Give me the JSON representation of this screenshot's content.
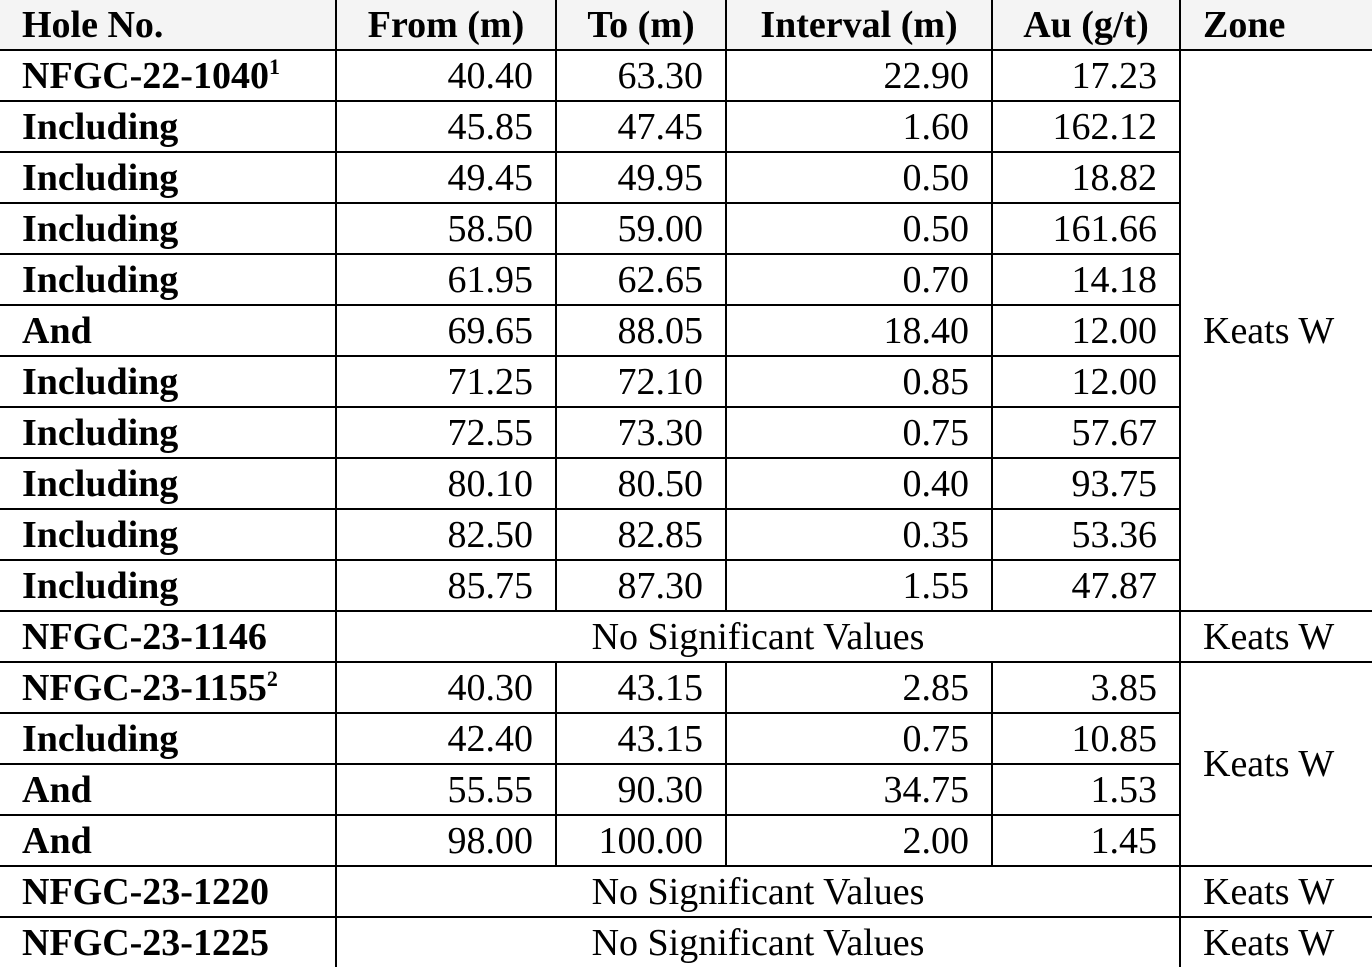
{
  "table": {
    "header": [
      "Hole No.",
      "From (m)",
      "To (m)",
      "Interval (m)",
      "Au (g/t)",
      "Zone"
    ],
    "groups": [
      {
        "zone": "Keats W",
        "rows": [
          {
            "hole": "NFGC-22-1040",
            "note": "1",
            "from": "40.40",
            "to": "63.30",
            "interval": "22.90",
            "au": "17.23"
          },
          {
            "hole": "Including",
            "from": "45.85",
            "to": "47.45",
            "interval": "1.60",
            "au": "162.12"
          },
          {
            "hole": "Including",
            "from": "49.45",
            "to": "49.95",
            "interval": "0.50",
            "au": "18.82"
          },
          {
            "hole": "Including",
            "from": "58.50",
            "to": "59.00",
            "interval": "0.50",
            "au": "161.66"
          },
          {
            "hole": "Including",
            "from": "61.95",
            "to": "62.65",
            "interval": "0.70",
            "au": "14.18"
          },
          {
            "hole": "And",
            "from": "69.65",
            "to": "88.05",
            "interval": "18.40",
            "au": "12.00"
          },
          {
            "hole": "Including",
            "from": "71.25",
            "to": "72.10",
            "interval": "0.85",
            "au": "12.00"
          },
          {
            "hole": "Including",
            "from": "72.55",
            "to": "73.30",
            "interval": "0.75",
            "au": "57.67"
          },
          {
            "hole": "Including",
            "from": "80.10",
            "to": "80.50",
            "interval": "0.40",
            "au": "93.75"
          },
          {
            "hole": "Including",
            "from": "82.50",
            "to": "82.85",
            "interval": "0.35",
            "au": "53.36"
          },
          {
            "hole": "Including",
            "from": "85.75",
            "to": "87.30",
            "interval": "1.55",
            "au": "47.87"
          }
        ]
      },
      {
        "zone": "Keats W",
        "rows": [
          {
            "hole": "NFGC-23-1146",
            "result": "No Significant Values"
          }
        ]
      },
      {
        "zone": "Keats W",
        "rows": [
          {
            "hole": "NFGC-23-1155",
            "note": "2",
            "from": "40.30",
            "to": "43.15",
            "interval": "2.85",
            "au": "3.85"
          },
          {
            "hole": "Including",
            "from": "42.40",
            "to": "43.15",
            "interval": "0.75",
            "au": "10.85"
          },
          {
            "hole": "And",
            "from": "55.55",
            "to": "90.30",
            "interval": "34.75",
            "au": "1.53"
          },
          {
            "hole": "And",
            "from": "98.00",
            "to": "100.00",
            "interval": "2.00",
            "au": "1.45"
          }
        ]
      },
      {
        "zone": "Keats W",
        "rows": [
          {
            "hole": "NFGC-23-1220",
            "result": "No Significant Values"
          }
        ]
      },
      {
        "zone": "Keats W",
        "rows": [
          {
            "hole": "NFGC-23-1225",
            "result": "No Significant Values"
          }
        ]
      }
    ]
  }
}
